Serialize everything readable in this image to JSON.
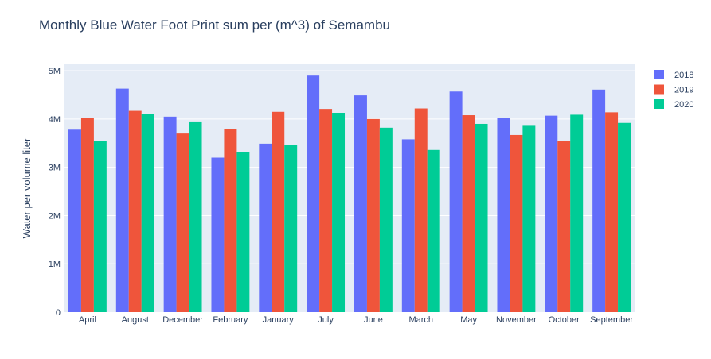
{
  "chart_data": {
    "type": "bar",
    "title": "Monthly Blue Water Foot Print sum per (m^3) of Semambu",
    "xlabel": "",
    "ylabel": "Water per volume liter",
    "categories": [
      "April",
      "August",
      "December",
      "February",
      "January",
      "July",
      "June",
      "March",
      "May",
      "November",
      "October",
      "September"
    ],
    "series": [
      {
        "name": "2018",
        "color": "#636efa",
        "values": [
          3780000,
          4630000,
          4050000,
          3200000,
          3490000,
          4900000,
          4490000,
          3580000,
          4570000,
          4030000,
          4070000,
          4610000
        ]
      },
      {
        "name": "2019",
        "color": "#ef553b",
        "values": [
          4020000,
          4170000,
          3700000,
          3800000,
          4150000,
          4210000,
          4000000,
          4220000,
          4080000,
          3670000,
          3550000,
          4140000
        ]
      },
      {
        "name": "2020",
        "color": "#00cc96",
        "values": [
          3540000,
          4100000,
          3950000,
          3320000,
          3460000,
          4130000,
          3820000,
          3360000,
          3900000,
          3860000,
          4090000,
          3920000
        ]
      }
    ],
    "ylim": [
      0,
      5150000
    ],
    "yticks": [
      {
        "value": 0,
        "label": "0"
      },
      {
        "value": 1000000,
        "label": "1M"
      },
      {
        "value": 2000000,
        "label": "2M"
      },
      {
        "value": 3000000,
        "label": "3M"
      },
      {
        "value": 4000000,
        "label": "4M"
      },
      {
        "value": 5000000,
        "label": "5M"
      }
    ],
    "grid": true,
    "legend_position": "top-right",
    "plot_background": "#e5ecf6"
  }
}
